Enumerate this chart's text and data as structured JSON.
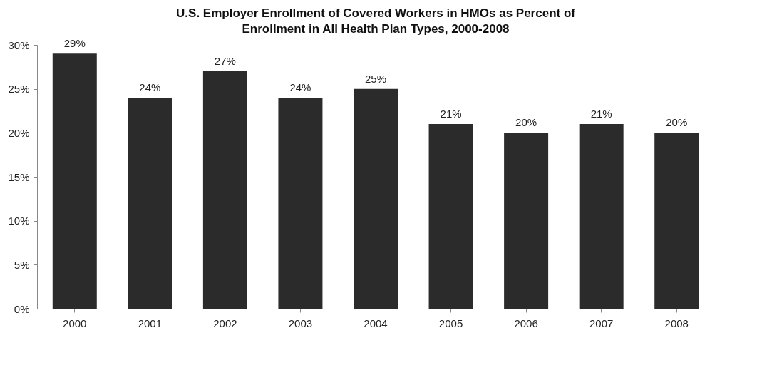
{
  "chart_data": {
    "type": "bar",
    "title": "U.S. Employer Enrollment of Covered Workers in HMOs as Percent of Enrollment in All Health Plan Types, 2000-2008",
    "categories": [
      "2000",
      "2001",
      "2002",
      "2003",
      "2004",
      "2005",
      "2006",
      "2007",
      "2008"
    ],
    "values": [
      29,
      24,
      27,
      24,
      25,
      21,
      20,
      21,
      20
    ],
    "value_labels": [
      "29%",
      "24%",
      "27%",
      "24%",
      "25%",
      "21%",
      "20%",
      "21%",
      "20%"
    ],
    "color": "#2b2b2b",
    "ylim": [
      0,
      30
    ],
    "yticks": [
      {
        "value": 0,
        "label": "0%"
      },
      {
        "value": 5,
        "label": "5%"
      },
      {
        "value": 10,
        "label": "10%"
      },
      {
        "value": 15,
        "label": "15%"
      },
      {
        "value": 20,
        "label": "20%"
      },
      {
        "value": 25,
        "label": "25%"
      },
      {
        "value": 30,
        "label": "30%"
      }
    ],
    "grid": false
  }
}
